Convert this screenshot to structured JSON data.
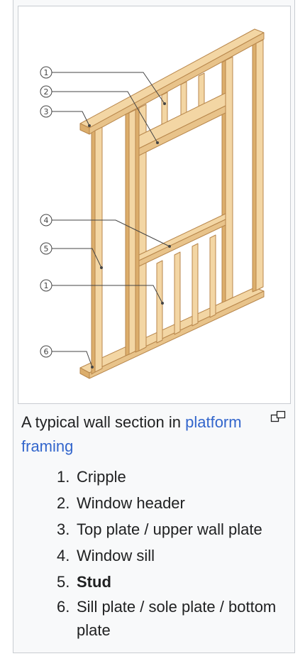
{
  "figure": {
    "callouts": [
      "1",
      "2",
      "3",
      "4",
      "5",
      "1",
      "6"
    ],
    "caption_prefix": "A typical wall section in ",
    "caption_link": "platform framing",
    "legend": [
      {
        "number": "1.",
        "label": "Cripple"
      },
      {
        "number": "2.",
        "label": "Window header"
      },
      {
        "number": "3.",
        "label": "Top plate / upper wall plate"
      },
      {
        "number": "4.",
        "label": "Window sill"
      },
      {
        "number": "5.",
        "label": "Stud",
        "bold": true
      },
      {
        "number": "6.",
        "label": "Sill plate / sole plate / bottom plate"
      }
    ]
  },
  "colors": {
    "wood_face": "#f3d6a4",
    "wood_side": "#dcae6c",
    "wood_outline": "#b8874c",
    "link": "#3366cc",
    "callout": "#444444"
  },
  "icons": {
    "magnify": "magnify-icon"
  }
}
